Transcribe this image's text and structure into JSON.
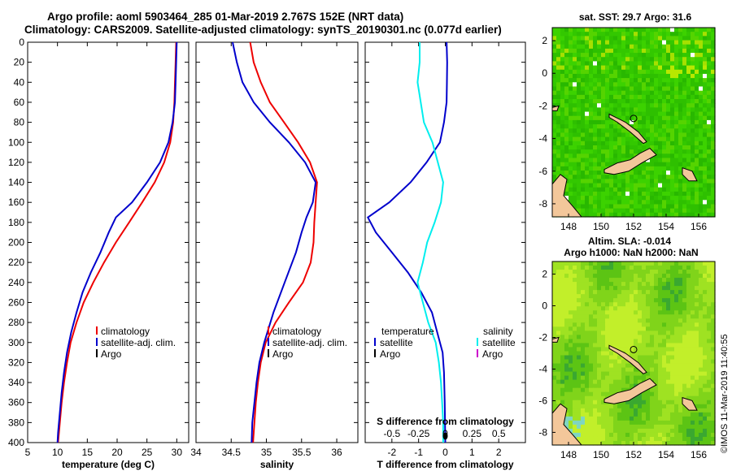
{
  "header": {
    "line1": "Argo profile: aoml 5903464_285 01-Mar-2019 2.767S 152E (NRT data)",
    "line2": "Climatology: CARS2009. Satellite-adjusted climatology: synTS_20190301.nc (0.077d earlier)"
  },
  "side_label": "©IMOS 11-Mar-2019 11:40:55",
  "colors": {
    "climatology": "#ee0000",
    "satellite": "#0000cc",
    "argo": "#000000",
    "salinity_sat": "#00eeee",
    "salinity_argo": "#cc00cc",
    "land": "#f3c79a"
  },
  "chart_data": [
    {
      "type": "line",
      "name": "temperature",
      "xlabel": "temperature (deg C)",
      "ylabel": "",
      "xlim": [
        5,
        32
      ],
      "ylim": [
        400,
        0
      ],
      "xticks": [
        "5",
        "10",
        "15",
        "20",
        "25",
        "30"
      ],
      "xtick_values": [
        5,
        10,
        15,
        20,
        25,
        30
      ],
      "yticks": [
        "0",
        "20",
        "40",
        "60",
        "80",
        "100",
        "120",
        "140",
        "160",
        "180",
        "200",
        "220",
        "240",
        "260",
        "280",
        "300",
        "320",
        "340",
        "360",
        "380",
        "400"
      ],
      "ytick_values": [
        0,
        20,
        40,
        60,
        80,
        100,
        120,
        140,
        160,
        180,
        200,
        220,
        240,
        260,
        280,
        300,
        320,
        340,
        360,
        380,
        400
      ],
      "legend": [
        "climatology",
        "satellite-adj. clim.",
        "Argo"
      ],
      "series": [
        {
          "name": "climatology",
          "color_key": "climatology",
          "points": [
            [
              29.9,
              0
            ],
            [
              29.8,
              20
            ],
            [
              29.7,
              40
            ],
            [
              29.6,
              60
            ],
            [
              29.4,
              80
            ],
            [
              28.9,
              100
            ],
            [
              27.9,
              120
            ],
            [
              26.3,
              140
            ],
            [
              24.2,
              160
            ],
            [
              22.0,
              180
            ],
            [
              19.8,
              200
            ],
            [
              17.8,
              220
            ],
            [
              16.0,
              240
            ],
            [
              14.4,
              260
            ],
            [
              13.2,
              280
            ],
            [
              12.2,
              300
            ],
            [
              11.6,
              320
            ],
            [
              11.1,
              340
            ],
            [
              10.7,
              360
            ],
            [
              10.4,
              380
            ],
            [
              10.1,
              400
            ]
          ]
        },
        {
          "name": "satellite-adj. clim.",
          "color_key": "satellite",
          "points": [
            [
              30.0,
              0
            ],
            [
              29.9,
              20
            ],
            [
              29.8,
              40
            ],
            [
              29.7,
              60
            ],
            [
              29.3,
              80
            ],
            [
              28.6,
              100
            ],
            [
              27.2,
              120
            ],
            [
              25.0,
              140
            ],
            [
              22.5,
              160
            ],
            [
              19.8,
              175
            ],
            [
              18.6,
              190
            ],
            [
              17.2,
              210
            ],
            [
              15.6,
              230
            ],
            [
              14.2,
              250
            ],
            [
              13.2,
              270
            ],
            [
              12.3,
              290
            ],
            [
              11.6,
              310
            ],
            [
              11.1,
              330
            ],
            [
              10.7,
              350
            ],
            [
              10.4,
              370
            ],
            [
              10.1,
              390
            ],
            [
              10.0,
              400
            ]
          ]
        }
      ]
    },
    {
      "type": "line",
      "name": "salinity",
      "xlabel": "salinity",
      "ylabel": "",
      "xlim": [
        34,
        36.3
      ],
      "ylim": [
        400,
        0
      ],
      "xticks": [
        "34",
        "34.5",
        "35",
        "35.5",
        "36"
      ],
      "xtick_values": [
        34,
        34.5,
        35,
        35.5,
        36
      ],
      "legend": [
        "climatology",
        "satellite-adj. clim.",
        "Argo"
      ],
      "series": [
        {
          "name": "climatology",
          "color_key": "climatology",
          "points": [
            [
              34.77,
              0
            ],
            [
              34.82,
              20
            ],
            [
              34.92,
              40
            ],
            [
              35.05,
              60
            ],
            [
              35.25,
              80
            ],
            [
              35.45,
              100
            ],
            [
              35.62,
              120
            ],
            [
              35.72,
              140
            ],
            [
              35.7,
              160
            ],
            [
              35.68,
              180
            ],
            [
              35.67,
              200
            ],
            [
              35.63,
              220
            ],
            [
              35.52,
              240
            ],
            [
              35.32,
              260
            ],
            [
              35.13,
              280
            ],
            [
              34.99,
              300
            ],
            [
              34.92,
              320
            ],
            [
              34.88,
              340
            ],
            [
              34.85,
              360
            ],
            [
              34.83,
              380
            ],
            [
              34.81,
              400
            ]
          ]
        },
        {
          "name": "satellite-adj. clim.",
          "color_key": "satellite",
          "points": [
            [
              34.52,
              0
            ],
            [
              34.58,
              20
            ],
            [
              34.66,
              40
            ],
            [
              34.82,
              60
            ],
            [
              35.05,
              80
            ],
            [
              35.32,
              100
            ],
            [
              35.55,
              120
            ],
            [
              35.7,
              140
            ],
            [
              35.66,
              160
            ],
            [
              35.57,
              175
            ],
            [
              35.5,
              190
            ],
            [
              35.42,
              210
            ],
            [
              35.26,
              240
            ],
            [
              35.1,
              270
            ],
            [
              34.97,
              300
            ],
            [
              34.9,
              320
            ],
            [
              34.86,
              340
            ],
            [
              34.83,
              360
            ],
            [
              34.8,
              380
            ],
            [
              34.79,
              400
            ]
          ]
        }
      ]
    },
    {
      "type": "line",
      "name": "difference",
      "xlabel": "T difference from climatology",
      "top_label": "S difference from climatology",
      "ylabel": "",
      "xlim": [
        -3,
        3
      ],
      "ylim": [
        400,
        0
      ],
      "xticks": [
        "-2",
        "-1",
        "0",
        "1",
        "2"
      ],
      "xtick_values": [
        -2,
        -1,
        0,
        1,
        2
      ],
      "sxlim": [
        -0.75,
        0.75
      ],
      "sxticks": [
        "-0.5",
        "-0.25",
        "0",
        "0.25",
        "0.5"
      ],
      "sxtick_values": [
        -0.5,
        -0.25,
        0,
        0.25,
        0.5
      ],
      "legend_temperature": [
        "temperature",
        "satellite",
        "Argo"
      ],
      "legend_salinity": [
        "salinity",
        "satellite",
        "Argo"
      ],
      "series": [
        {
          "name": "temperature satellite",
          "color_key": "satellite",
          "axis": "T",
          "points": [
            [
              0.05,
              0
            ],
            [
              0.07,
              20
            ],
            [
              0.06,
              40
            ],
            [
              0.05,
              60
            ],
            [
              -0.05,
              80
            ],
            [
              -0.2,
              100
            ],
            [
              -0.7,
              120
            ],
            [
              -1.3,
              140
            ],
            [
              -2.1,
              160
            ],
            [
              -2.9,
              175
            ],
            [
              -2.6,
              190
            ],
            [
              -2.0,
              210
            ],
            [
              -1.4,
              230
            ],
            [
              -0.9,
              250
            ],
            [
              -0.5,
              270
            ],
            [
              -0.3,
              290
            ],
            [
              -0.1,
              310
            ],
            [
              -0.05,
              330
            ],
            [
              -0.02,
              360
            ],
            [
              0.0,
              400
            ]
          ]
        },
        {
          "name": "salinity satellite",
          "color_key": "salinity_sat",
          "axis": "S",
          "points": [
            [
              -0.24,
              0
            ],
            [
              -0.24,
              20
            ],
            [
              -0.26,
              40
            ],
            [
              -0.23,
              60
            ],
            [
              -0.2,
              80
            ],
            [
              -0.12,
              100
            ],
            [
              -0.07,
              120
            ],
            [
              -0.02,
              140
            ],
            [
              -0.04,
              160
            ],
            [
              -0.1,
              180
            ],
            [
              -0.17,
              200
            ],
            [
              -0.21,
              220
            ],
            [
              -0.26,
              240
            ],
            [
              -0.21,
              260
            ],
            [
              -0.16,
              280
            ],
            [
              -0.09,
              300
            ],
            [
              -0.06,
              320
            ],
            [
              -0.04,
              340
            ],
            [
              -0.03,
              360
            ],
            [
              -0.02,
              380
            ],
            [
              -0.02,
              400
            ]
          ]
        }
      ]
    },
    {
      "type": "heatmap",
      "name": "sst-map",
      "title": "sat. SST: 29.7 Argo: 31.6",
      "xlim": [
        147,
        157
      ],
      "ylim": [
        -8.8,
        2.8
      ],
      "xticks": [
        "148",
        "150",
        "152",
        "154",
        "156"
      ],
      "xtick_values": [
        148,
        150,
        152,
        154,
        156
      ],
      "yticks": [
        "2",
        "0",
        "-2",
        "-4",
        "-6",
        "-8"
      ],
      "ytick_values": [
        2,
        0,
        -2,
        -4,
        -6,
        -8
      ],
      "argo_position": {
        "lon": 152,
        "lat": -2.767
      }
    },
    {
      "type": "heatmap",
      "name": "sla-map",
      "title": "Altim. SLA: -0.014",
      "subtitle": "Argo h1000: NaN h2000: NaN",
      "xlim": [
        147,
        157
      ],
      "ylim": [
        -8.8,
        2.8
      ],
      "xticks": [
        "148",
        "150",
        "152",
        "154",
        "156"
      ],
      "xtick_values": [
        148,
        150,
        152,
        154,
        156
      ],
      "yticks": [
        "2",
        "0",
        "-2",
        "-4",
        "-6",
        "-8"
      ],
      "ytick_values": [
        2,
        0,
        -2,
        -4,
        -6,
        -8
      ],
      "argo_position": {
        "lon": 152,
        "lat": -2.767
      }
    }
  ]
}
